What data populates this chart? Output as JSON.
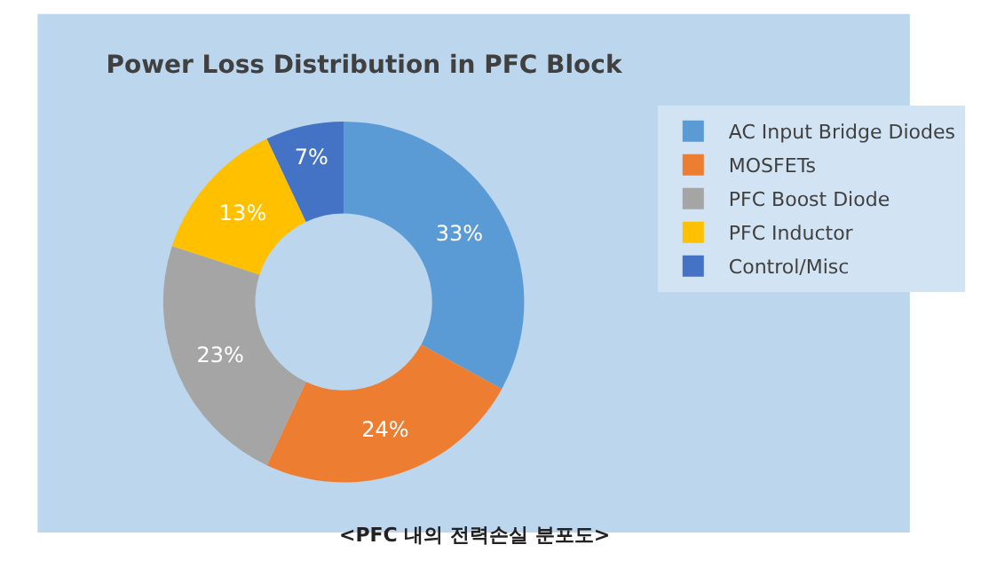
{
  "chart_data": {
    "type": "donut",
    "title": "Power Loss Distribution in PFC Block",
    "categories": [
      "AC Input Bridge Diodes",
      "MOSFETs",
      "PFC Boost Diode",
      "PFC Inductor",
      "Control/Misc"
    ],
    "values": [
      33,
      24,
      23,
      13,
      7
    ],
    "colors": [
      "#5b9bd5",
      "#ed7d31",
      "#a5a5a5",
      "#ffc000",
      "#4472c4"
    ],
    "value_labels": [
      "33%",
      "24%",
      "23%",
      "13%",
      "7%"
    ],
    "legend": "right",
    "annotations": [
      "<PFC 내의 전력손실 분포도>"
    ]
  }
}
